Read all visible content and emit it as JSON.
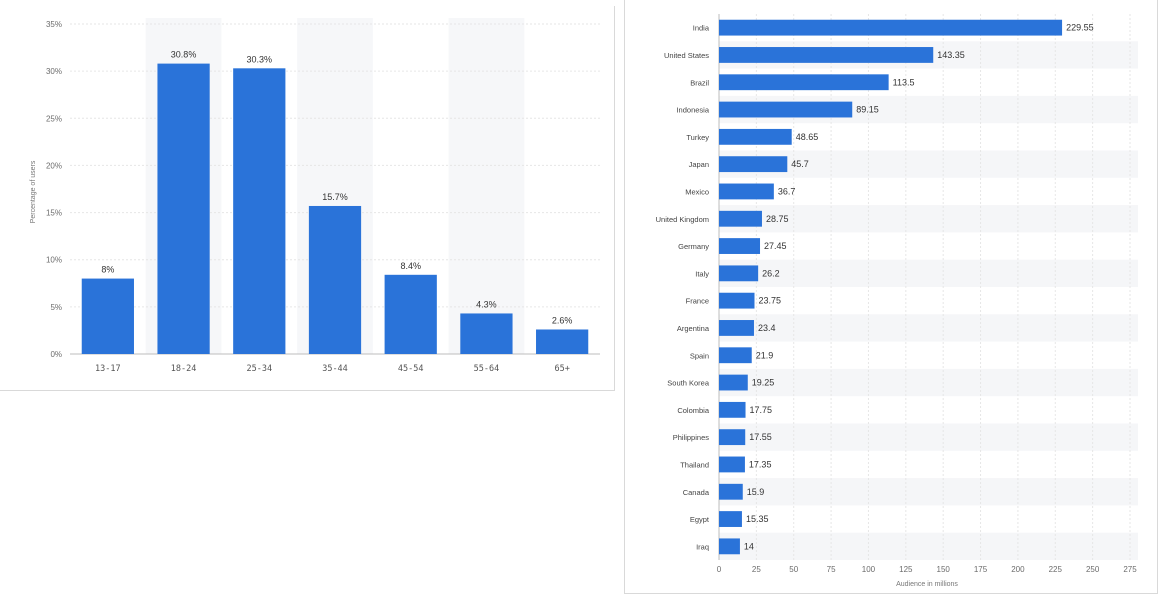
{
  "chart_data": [
    {
      "type": "bar",
      "title": "",
      "xlabel": "",
      "ylabel": "Percentage of users",
      "categories": [
        "13-17",
        "18-24",
        "25-34",
        "35-44",
        "45-54",
        "55-64",
        "65+"
      ],
      "values": [
        8,
        30.8,
        30.3,
        15.7,
        8.4,
        4.3,
        2.6
      ],
      "value_labels": [
        "8%",
        "30.8%",
        "30.3%",
        "15.7%",
        "8.4%",
        "4.3%",
        "2.6%"
      ],
      "ylim": [
        0,
        35
      ],
      "yticks": [
        0,
        5,
        10,
        15,
        20,
        25,
        30,
        35
      ],
      "ytick_labels": [
        "0%",
        "5%",
        "10%",
        "15%",
        "20%",
        "25%",
        "30%",
        "35%"
      ],
      "grid": true,
      "color": "#2A73D9"
    },
    {
      "type": "bar",
      "orientation": "horizontal",
      "title": "",
      "xlabel": "Audience in millions",
      "ylabel": "",
      "categories": [
        "India",
        "United States",
        "Brazil",
        "Indonesia",
        "Turkey",
        "Japan",
        "Mexico",
        "United Kingdom",
        "Germany",
        "Italy",
        "France",
        "Argentina",
        "Spain",
        "South Korea",
        "Colombia",
        "Philippines",
        "Thailand",
        "Canada",
        "Egypt",
        "Iraq"
      ],
      "values": [
        229.55,
        143.35,
        113.5,
        89.15,
        48.65,
        45.7,
        36.7,
        28.75,
        27.45,
        26.2,
        23.75,
        23.4,
        21.9,
        19.25,
        17.75,
        17.55,
        17.35,
        15.9,
        15.35,
        14
      ],
      "value_labels": [
        "229.55",
        "143.35",
        "113.5",
        "89.15",
        "48.65",
        "45.7",
        "36.7",
        "28.75",
        "27.45",
        "26.2",
        "23.75",
        "23.4",
        "21.9",
        "19.25",
        "17.75",
        "17.55",
        "17.35",
        "15.9",
        "15.35",
        "14"
      ],
      "xlim": [
        0,
        275
      ],
      "xticks": [
        0,
        25,
        50,
        75,
        100,
        125,
        150,
        175,
        200,
        225,
        250,
        275
      ],
      "xtick_labels": [
        "0",
        "25",
        "50",
        "75",
        "100",
        "125",
        "150",
        "175",
        "200",
        "225",
        "250",
        "275"
      ],
      "grid": true,
      "color": "#2A73D9"
    }
  ]
}
